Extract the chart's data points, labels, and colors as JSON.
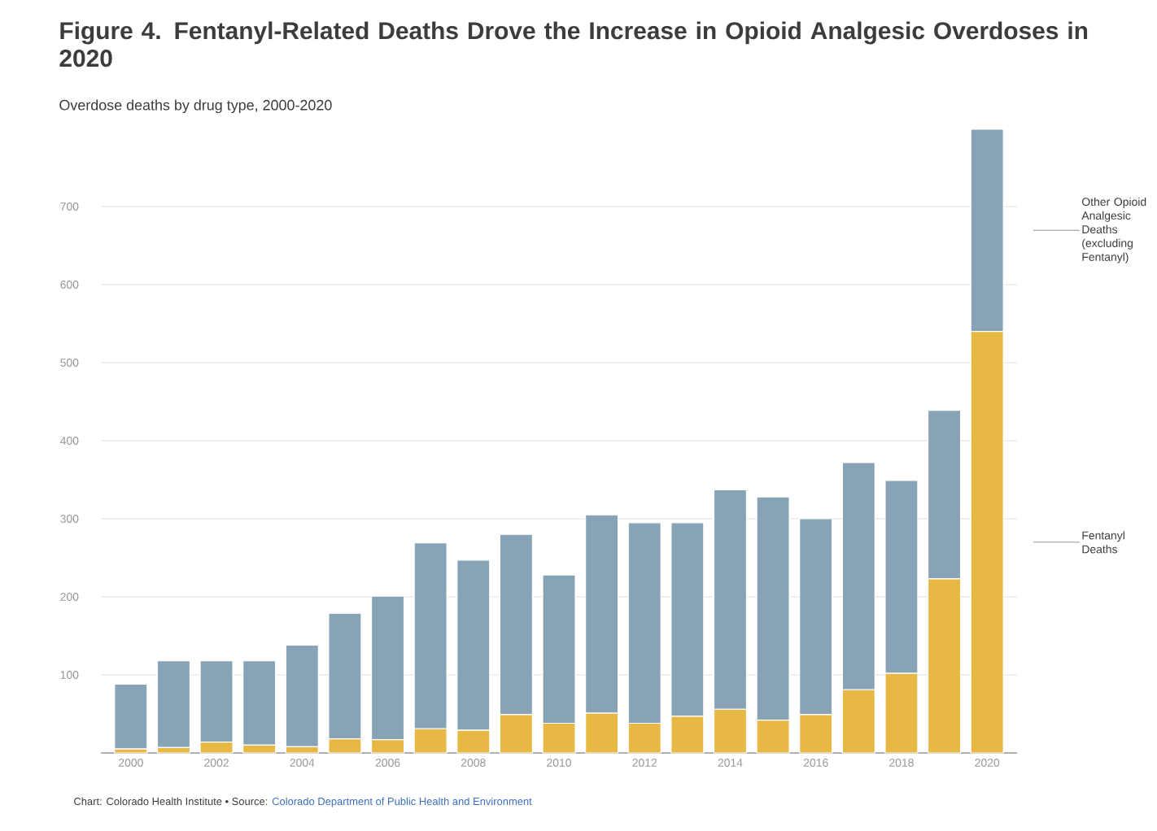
{
  "chart_data": {
    "type": "bar",
    "stacked": true,
    "title": "Figure 4. Fentanyl-Related Deaths Drove the Increase in Opioid Analgesic Overdoses in 2020",
    "subtitle": "Overdose deaths by drug type, 2000-2020",
    "categories": [
      "2000",
      null,
      "2002",
      null,
      "2004",
      null,
      "2006",
      null,
      "2008",
      null,
      "2010",
      null,
      "2012",
      null,
      "2014",
      null,
      "2016",
      null,
      "2018",
      null,
      "2020"
    ],
    "series": [
      {
        "name": "Fentanyl Deaths",
        "color": "#e8b844",
        "values": [
          5,
          7,
          14,
          10,
          8,
          18,
          17,
          31,
          29,
          49,
          38,
          51,
          38,
          47,
          56,
          42,
          49,
          81,
          102,
          223,
          540
        ]
      },
      {
        "name": "Other Opioid Analgesic Deaths (excluding Fentanyl)",
        "color": "#87a3b5",
        "values": [
          83,
          111,
          104,
          108,
          130,
          161,
          184,
          238,
          218,
          231,
          190,
          254,
          257,
          248,
          281,
          286,
          251,
          291,
          247,
          216,
          259
        ]
      }
    ],
    "ylim": [
      0,
      800
    ],
    "yticks": [
      100,
      200,
      300,
      400,
      500,
      600,
      700
    ],
    "grid": "y",
    "annotations": [
      "Chart: Colorado Health Institute • Source:",
      "Colorado Department of Public Health and Environment"
    ]
  }
}
